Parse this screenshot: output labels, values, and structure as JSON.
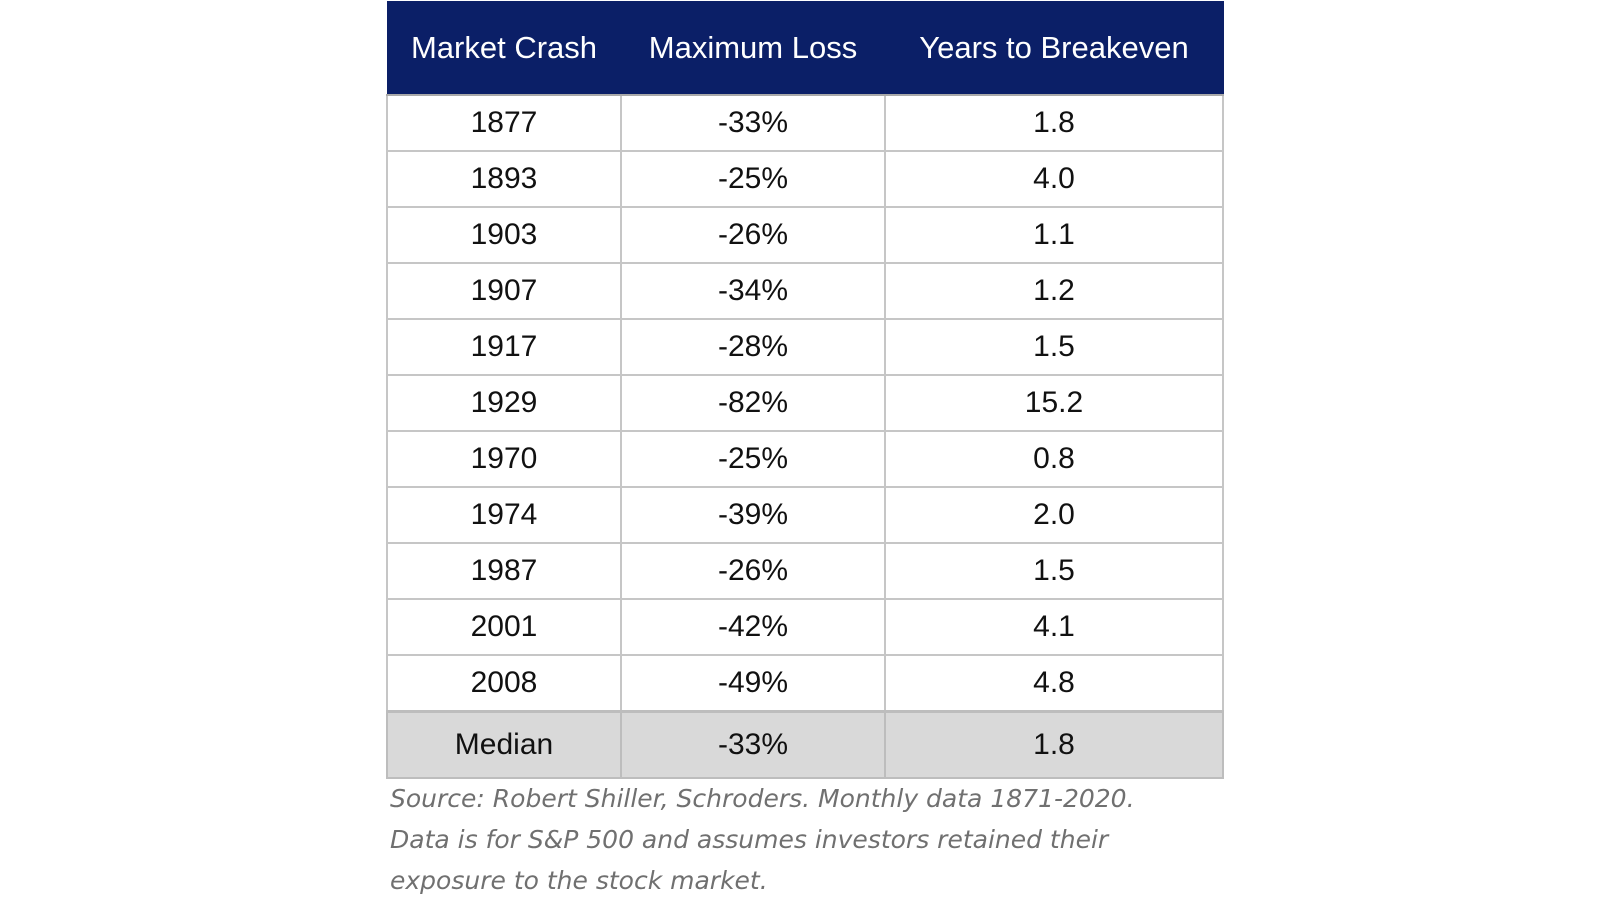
{
  "chart_data": {
    "type": "table",
    "columns": [
      "Market Crash",
      "Maximum Loss",
      "Years to Breakeven"
    ],
    "rows": [
      [
        "1877",
        "-33%",
        "1.8"
      ],
      [
        "1893",
        "-25%",
        "4.0"
      ],
      [
        "1903",
        "-26%",
        "1.1"
      ],
      [
        "1907",
        "-34%",
        "1.2"
      ],
      [
        "1917",
        "-28%",
        "1.5"
      ],
      [
        "1929",
        "-82%",
        "15.2"
      ],
      [
        "1970",
        "-25%",
        "0.8"
      ],
      [
        "1974",
        "-39%",
        "2.0"
      ],
      [
        "1987",
        "-26%",
        "1.5"
      ],
      [
        "2001",
        "-42%",
        "4.1"
      ],
      [
        "2008",
        "-49%",
        "4.8"
      ]
    ],
    "summary_row": [
      "Median",
      "-33%",
      "1.8"
    ],
    "colors": {
      "header_background": "#0b1f67",
      "header_text": "#ffffff",
      "summary_background": "#d9d9d9",
      "note_text": "#707070"
    }
  },
  "source_note": [
    "Source: Robert Shiller, Schroders. Monthly data 1871-2020.",
    "Data is for S&P 500 and assumes investors retained their",
    "exposure to the stock market."
  ]
}
